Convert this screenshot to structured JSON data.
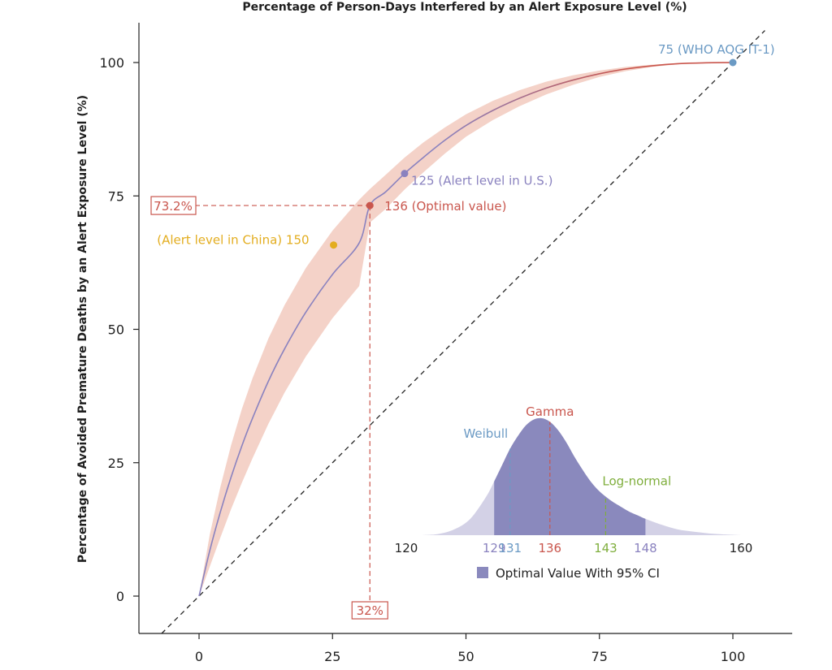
{
  "chart_data": {
    "type": "line",
    "title": "Percentage of Person-Days Interfered by an Alert Exposure Level (%)",
    "xlabel": "",
    "ylabel": "Percentage of Avoided Premature Deaths by an Alert Exposure Level (%)",
    "xlim": [
      -11,
      111
    ],
    "ylim": [
      -7,
      107
    ],
    "xticks": [
      "0",
      "25",
      "50",
      "75",
      "100"
    ],
    "yticks": [
      "0",
      "25",
      "50",
      "75",
      "100"
    ],
    "xtick_values": [
      0,
      25,
      50,
      75,
      100
    ],
    "ytick_values": [
      0,
      25,
      50,
      75,
      100
    ],
    "curve": {
      "x": [
        0,
        2,
        4,
        6,
        8,
        10,
        13,
        16,
        20,
        25,
        30,
        32,
        35,
        38.5,
        42,
        46,
        50,
        55,
        60,
        65,
        70,
        75,
        80,
        85,
        90,
        95,
        100
      ],
      "y": [
        0,
        8.5,
        15.8,
        22.3,
        28.1,
        33.3,
        40.3,
        46.3,
        53.2,
        60.3,
        66.2,
        73.2,
        75.8,
        79.2,
        82.2,
        85.4,
        88.2,
        91.0,
        93.3,
        95.2,
        96.7,
        97.9,
        98.8,
        99.4,
        99.8,
        99.95,
        100
      ],
      "ci_upper": [
        0,
        11.5,
        20.5,
        28.3,
        35.0,
        40.8,
        48.3,
        54.5,
        61.5,
        68.5,
        74.3,
        76.3,
        79.0,
        82.2,
        85.0,
        87.8,
        90.3,
        92.8,
        94.8,
        96.4,
        97.6,
        98.5,
        99.2,
        99.6,
        99.9,
        100,
        100
      ],
      "ci_lower": [
        0,
        5.5,
        11.0,
        16.3,
        21.2,
        25.8,
        32.3,
        38.1,
        44.9,
        52.1,
        58.1,
        70.0,
        72.6,
        76.2,
        79.4,
        82.9,
        86.1,
        89.2,
        91.8,
        94.0,
        95.8,
        97.3,
        98.4,
        99.2,
        99.7,
        99.9,
        100
      ]
    },
    "diagonal": {
      "x": [
        -7,
        106
      ],
      "y": [
        -7,
        106
      ]
    },
    "points": [
      {
        "x": 100,
        "y": 100,
        "label": "75 (WHO AQG IT-1)",
        "color": "#6b9ac4",
        "dot_color": "#6b9ac4"
      },
      {
        "x": 38.5,
        "y": 79.2,
        "label": "125 (Alert level in U.S.)",
        "color": "#8a82bf",
        "dot_color": "#8a82bf"
      },
      {
        "x": 32,
        "y": 73.2,
        "label": "136 (Optimal value)",
        "color": "#c9564d",
        "dot_color": "#c9564d"
      },
      {
        "x": 25.2,
        "y": 65.8,
        "label": "(Alert level in China) 150",
        "color": "#e3ad1f",
        "dot_color": "#e3ad1f"
      }
    ],
    "optimal": {
      "x": 32,
      "y": 73.2,
      "x_label": "32%",
      "y_label": "73.2%"
    },
    "inset": {
      "type": "area",
      "xlim": [
        120,
        160
      ],
      "x_end_labels": [
        "120",
        "160"
      ],
      "ci": [
        129,
        148
      ],
      "markers": [
        {
          "value": 129,
          "label": "129",
          "color": "#8a82bf"
        },
        {
          "value": 131,
          "label": "131",
          "color": "#6b9ac4"
        },
        {
          "value": 136,
          "label": "136",
          "color": "#c9564d"
        },
        {
          "value": 143,
          "label": "143",
          "color": "#7fae3c"
        },
        {
          "value": 148,
          "label": "148",
          "color": "#8a82bf"
        }
      ],
      "distributions": [
        {
          "name": "Weibull",
          "value": 131,
          "color": "#6b9ac4"
        },
        {
          "name": "Gamma",
          "value": 136,
          "color": "#c9564d"
        },
        {
          "name": "Log-normal",
          "value": 143,
          "color": "#7fae3c"
        }
      ],
      "density": {
        "x": [
          120,
          122,
          124,
          126,
          128,
          129,
          130,
          131,
          132,
          133,
          134,
          135,
          136,
          137,
          138,
          139,
          140,
          141,
          142,
          143,
          144,
          145,
          146,
          147,
          148,
          150,
          152,
          154,
          156,
          158,
          160
        ],
        "y": [
          0,
          0.01,
          0.05,
          0.14,
          0.33,
          0.46,
          0.6,
          0.74,
          0.85,
          0.94,
          0.99,
          1.0,
          0.97,
          0.9,
          0.8,
          0.68,
          0.57,
          0.47,
          0.39,
          0.33,
          0.28,
          0.24,
          0.2,
          0.17,
          0.14,
          0.09,
          0.05,
          0.03,
          0.015,
          0.006,
          0
        ]
      },
      "legend_label": "Optimal Value With 95% CI"
    },
    "colors": {
      "curve": "#8a82bf",
      "curve_right": "#c9564d",
      "band": "#f4d2c8",
      "optimal": "#c9564d",
      "axis": "#222222",
      "inset_fill": "#d3d1e6",
      "inset_ci_fill": "#8a89bd"
    }
  }
}
